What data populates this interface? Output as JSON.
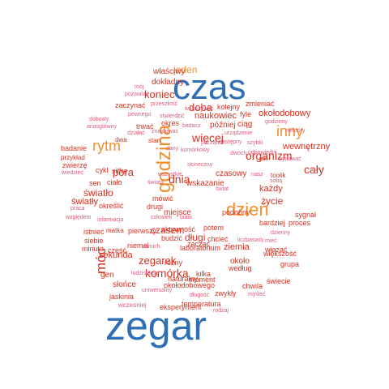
{
  "colors": {
    "red": "#d7301f",
    "orange": "#f28e2b",
    "blue": "#2f6fb3",
    "pink": "#e05a7a"
  },
  "words": [
    {
      "text": "czas",
      "color": "blue"
    },
    {
      "text": "zegar",
      "color": "blue"
    },
    {
      "text": "godzina",
      "color": "orange"
    },
    {
      "text": "dzień",
      "color": "orange"
    },
    {
      "text": "rytm",
      "color": "orange"
    },
    {
      "text": "inny",
      "color": "orange"
    },
    {
      "text": "móc",
      "color": "red"
    },
    {
      "text": "komórka",
      "color": "red"
    },
    {
      "text": "dnia",
      "color": "red"
    },
    {
      "text": "zegarek",
      "color": "red"
    },
    {
      "text": "organizm",
      "color": "red"
    },
    {
      "text": "więcej",
      "color": "red"
    },
    {
      "text": "doba",
      "color": "red"
    },
    {
      "text": "cały",
      "color": "red"
    },
    {
      "text": "pora",
      "color": "red"
    },
    {
      "text": "koniec",
      "color": "red"
    },
    {
      "text": "jeden",
      "color": "orange"
    },
    {
      "text": "czasem",
      "color": "red"
    },
    {
      "text": "długi",
      "color": "red"
    },
    {
      "text": "światło",
      "color": "red"
    },
    {
      "text": "życie",
      "color": "red"
    },
    {
      "text": "każdy",
      "color": "red"
    },
    {
      "text": "wewnętrzny",
      "color": "red"
    },
    {
      "text": "okołodobowy",
      "color": "red"
    },
    {
      "text": "naukowiec",
      "color": "red"
    },
    {
      "text": "dokładny",
      "color": "red"
    },
    {
      "text": "właściwy",
      "color": "red"
    },
    {
      "text": "zaczynać",
      "color": "red"
    },
    {
      "text": "mój",
      "color": "pink"
    },
    {
      "text": "pozwalać",
      "color": "pink"
    },
    {
      "text": "przeszłość",
      "color": "pink"
    },
    {
      "text": "pewnego",
      "color": "pink"
    },
    {
      "text": "stwierdzić",
      "color": "pink"
    },
    {
      "text": "kolejny",
      "color": "red"
    },
    {
      "text": "zmieniać",
      "color": "red"
    },
    {
      "text": "fyle",
      "color": "red"
    },
    {
      "text": "później",
      "color": "red"
    },
    {
      "text": "ciąg",
      "color": "red"
    },
    {
      "text": "dobowy",
      "color": "pink"
    },
    {
      "text": "ariasglówny",
      "color": "pink"
    },
    {
      "text": "trwać",
      "color": "red"
    },
    {
      "text": "okres",
      "color": "red"
    },
    {
      "text": "badacz",
      "color": "pink"
    },
    {
      "text": "wskazywać",
      "color": "pink"
    },
    {
      "text": "urządzenie",
      "color": "pink"
    },
    {
      "text": "godzinny",
      "color": "pink"
    },
    {
      "text": "niektóry",
      "color": "pink"
    },
    {
      "text": "działać",
      "color": "pink"
    },
    {
      "text": "znajdować",
      "color": "pink"
    },
    {
      "text": "stan",
      "color": "red"
    },
    {
      "text": "następny",
      "color": "pink"
    },
    {
      "text": "początek",
      "color": "pink"
    },
    {
      "text": "szybki",
      "color": "pink"
    },
    {
      "text": "badanie",
      "color": "red"
    },
    {
      "text": "dwa",
      "color": "red"
    },
    {
      "text": "dany",
      "color": "pink"
    },
    {
      "text": "komórkowy",
      "color": "pink"
    },
    {
      "text": "dwóch",
      "color": "pink"
    },
    {
      "text": "odpowiedni",
      "color": "pink"
    },
    {
      "text": "przykład",
      "color": "red"
    },
    {
      "text": "zwierzę",
      "color": "red"
    },
    {
      "text": "wiedzieć",
      "color": "pink"
    },
    {
      "text": "cykl",
      "color": "red"
    },
    {
      "text": "siffre",
      "color": "red"
    },
    {
      "text": "sen",
      "color": "red"
    },
    {
      "text": "ciało",
      "color": "red"
    },
    {
      "text": "czasowy",
      "color": "red"
    },
    {
      "text": "wskazanie",
      "color": "red"
    },
    {
      "text": "wszystkie",
      "color": "pink"
    },
    {
      "text": "słoneczny",
      "color": "pink"
    },
    {
      "text": "wydawać",
      "color": "pink"
    },
    {
      "text": "toolik",
      "color": "red"
    },
    {
      "text": "jaki",
      "color": "red"
    },
    {
      "text": "nasz",
      "color": "pink"
    },
    {
      "text": "sobą",
      "color": "pink"
    },
    {
      "text": "świat",
      "color": "pink"
    },
    {
      "text": "świata",
      "color": "pink"
    },
    {
      "text": "światły",
      "color": "red"
    },
    {
      "text": "określić",
      "color": "red"
    },
    {
      "text": "mówić",
      "color": "red"
    },
    {
      "text": "drugi",
      "color": "red"
    },
    {
      "text": "miejsce",
      "color": "red"
    },
    {
      "text": "podobny",
      "color": "red"
    },
    {
      "text": "bardziej",
      "color": "red"
    },
    {
      "text": "proces",
      "color": "red"
    },
    {
      "text": "praca",
      "color": "pink"
    },
    {
      "text": "sygnał",
      "color": "red"
    },
    {
      "text": "względem",
      "color": "pink"
    },
    {
      "text": "informacja",
      "color": "pink"
    },
    {
      "text": "człowiek",
      "color": "pink"
    },
    {
      "text": "biała",
      "color": "pink"
    },
    {
      "text": "dzienny",
      "color": "pink"
    },
    {
      "text": "istnieć",
      "color": "red"
    },
    {
      "text": "matka",
      "color": "red"
    },
    {
      "text": "pierwszy",
      "color": "red"
    },
    {
      "text": "aktywność",
      "color": "red"
    },
    {
      "text": "potem",
      "color": "red"
    },
    {
      "text": "zacząć",
      "color": "red"
    },
    {
      "text": "siebie",
      "color": "red"
    },
    {
      "text": "budzić",
      "color": "red"
    },
    {
      "text": "chcieć",
      "color": "red"
    },
    {
      "text": "liczbaswój",
      "color": "pink"
    },
    {
      "text": "mieć",
      "color": "pink"
    },
    {
      "text": "część",
      "color": "red"
    },
    {
      "text": "niemal",
      "color": "red"
    },
    {
      "text": "swoich",
      "color": "pink"
    },
    {
      "text": "laboratorium",
      "color": "red"
    },
    {
      "text": "ziemia",
      "color": "red"
    },
    {
      "text": "wiązać",
      "color": "red"
    },
    {
      "text": "większość",
      "color": "red"
    },
    {
      "text": "minuta",
      "color": "red"
    },
    {
      "text": "sekunda",
      "color": "red"
    },
    {
      "text": "grupa",
      "color": "red"
    },
    {
      "text": "około",
      "color": "red"
    },
    {
      "text": "według",
      "color": "red"
    },
    {
      "text": "gen",
      "color": "red"
    },
    {
      "text": "różny",
      "color": "red"
    },
    {
      "text": "naturalny",
      "color": "red"
    },
    {
      "text": "moment",
      "color": "red"
    },
    {
      "text": "słońce",
      "color": "red"
    },
    {
      "text": "ludzistacja",
      "color": "pink"
    },
    {
      "text": "kilka",
      "color": "red"
    },
    {
      "text": "świecie",
      "color": "red"
    },
    {
      "text": "okołodobowego",
      "color": "red"
    },
    {
      "text": "jaskinia",
      "color": "red"
    },
    {
      "text": "chwila",
      "color": "red"
    },
    {
      "text": "zwykły",
      "color": "red"
    },
    {
      "text": "myśleć",
      "color": "pink"
    },
    {
      "text": "temperatura",
      "color": "red"
    },
    {
      "text": "wczesniej",
      "color": "pink"
    },
    {
      "text": "eksperyment",
      "color": "red"
    },
    {
      "text": "rodzaj",
      "color": "pink"
    },
    {
      "text": "uniwersalny",
      "color": "pink"
    },
    {
      "text": "długość",
      "color": "pink"
    }
  ]
}
